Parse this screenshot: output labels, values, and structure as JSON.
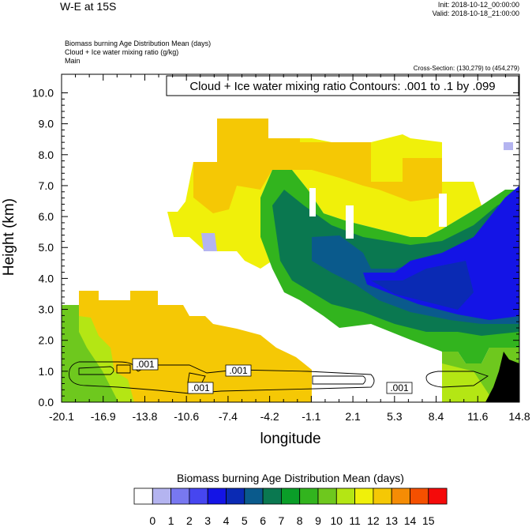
{
  "header": {
    "title": "W-E at 15S",
    "init_line": "Init: 2018-10-12_00:00:00",
    "valid_line": "Valid: 2018-10-18_21:00:00",
    "field1": "Biomass burning Age Distribution Mean    (days)",
    "field2": "Cloud + Ice water mixing ratio    (g/kg)",
    "field3": "Main",
    "cross_section": "Cross-Section: (130,279) to (454,279)"
  },
  "chart_data": {
    "type": "heatmap",
    "title": "W-E at 15S",
    "xlabel": "longitude",
    "ylabel": "Height (km)",
    "x_ticks": [
      "-20.1",
      "-16.9",
      "-13.8",
      "-10.6",
      "-7.4",
      "-4.2",
      "-1.1",
      "2.1",
      "5.3",
      "8.4",
      "11.6",
      "14.8"
    ],
    "y_ticks": [
      "0.0",
      "1.0",
      "2.0",
      "3.0",
      "4.0",
      "5.0",
      "6.0",
      "7.0",
      "8.0",
      "9.0",
      "10.0"
    ],
    "xlim": [
      -20.1,
      14.8
    ],
    "ylim": [
      0,
      10.6
    ],
    "contour_info": "Cloud + Ice water mixing ratio Contours: .001 to .1 by .099",
    "contour_labels": [
      ".001",
      ".001",
      ".001",
      ".001"
    ],
    "colorbar_title": "Biomass burning Age Distribution Mean  (days)",
    "colorbar_labels": [
      "0",
      "1",
      "2",
      "3",
      "4",
      "5",
      "6",
      "7",
      "8",
      "9",
      "10",
      "11",
      "12",
      "13",
      "14",
      "15"
    ],
    "colorbar_colors": [
      "#ffffff",
      "#b4b4f0",
      "#7878f0",
      "#4646f0",
      "#1414e6",
      "#0a2ab4",
      "#0a5a8c",
      "#0a7850",
      "#0a9e28",
      "#32b41e",
      "#6ec81e",
      "#b4e614",
      "#f0f00a",
      "#f5c805",
      "#f58c05",
      "#f55000",
      "#f50a0a"
    ],
    "regions": [
      {
        "name": "lower-left-warm",
        "value": 12.5,
        "x": [
          -20.1,
          -1.1
        ],
        "y": [
          0,
          3.3
        ]
      },
      {
        "name": "upper-yellow-band",
        "value": 11.5,
        "x": [
          -12.5,
          8.4
        ],
        "y": [
          5.0,
          8.5
        ]
      },
      {
        "name": "mid-green-core",
        "value": 7.5,
        "x": [
          -4.2,
          14.8
        ],
        "y": [
          2.2,
          7.3
        ]
      },
      {
        "name": "blue-core",
        "value": 4.0,
        "x": [
          2.1,
          14.8
        ],
        "y": [
          3.5,
          7.0
        ]
      },
      {
        "name": "upper-orange",
        "value": 12.8,
        "x": [
          -12.0,
          4.5
        ],
        "y": [
          6.8,
          9.7
        ]
      }
    ]
  }
}
